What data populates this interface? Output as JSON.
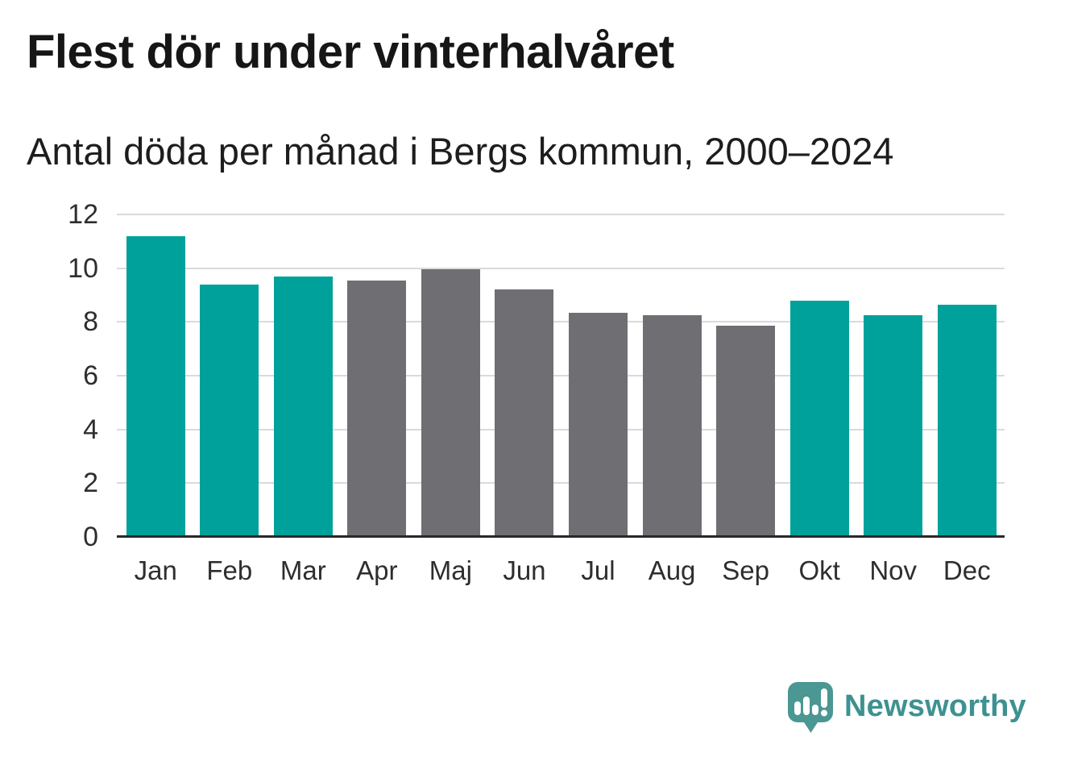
{
  "title": "Flest dör under vinterhalvåret",
  "subtitle": "Antal döda per månad i Bergs kommun, 2000–2024",
  "logo": {
    "text": "Newsworthy",
    "text_color": "#3e9191",
    "mark_color": "#4a9793"
  },
  "chart_data": {
    "type": "bar",
    "title": "Flest dör under vinterhalvåret",
    "subtitle": "Antal döda per månad i Bergs kommun, 2000–2024",
    "categories": [
      "Jan",
      "Feb",
      "Mar",
      "Apr",
      "Maj",
      "Jun",
      "Jul",
      "Aug",
      "Sep",
      "Okt",
      "Nov",
      "Dec"
    ],
    "values": [
      11.2,
      9.4,
      9.7,
      9.55,
      9.95,
      9.2,
      8.35,
      8.25,
      7.85,
      8.8,
      8.25,
      8.65
    ],
    "bar_colors": [
      "teal",
      "teal",
      "teal",
      "gray",
      "gray",
      "gray",
      "gray",
      "gray",
      "gray",
      "teal",
      "teal",
      "teal"
    ],
    "palette": {
      "teal": "#00a19a",
      "gray": "#6f6e72"
    },
    "xlabel": "",
    "ylabel": "",
    "ylim": [
      0,
      12
    ],
    "yticks": [
      0,
      2,
      4,
      6,
      8,
      10,
      12
    ],
    "grid": true,
    "legend": false,
    "gridline_color": "#dadada",
    "axis_line_color": "#28282a"
  }
}
